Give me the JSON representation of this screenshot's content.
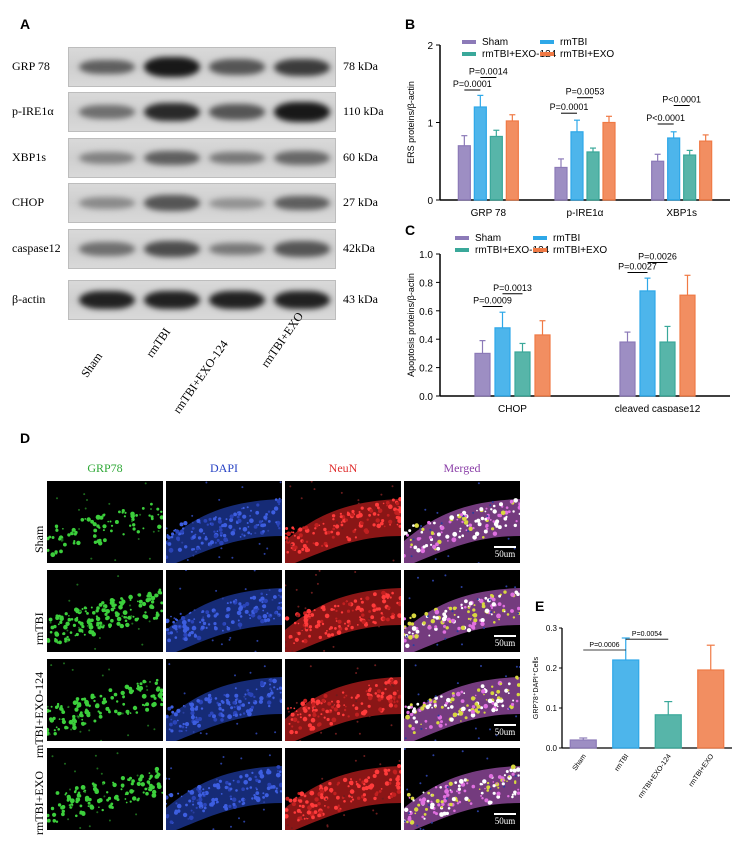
{
  "panel_letters": {
    "a": "A",
    "b": "B",
    "c": "C",
    "d": "D",
    "e": "E"
  },
  "western_blot": {
    "rows": [
      {
        "protein": "GRP 78",
        "kda": "78 kDa",
        "intensities": [
          0.55,
          0.95,
          0.6,
          0.75
        ]
      },
      {
        "protein": "p-IRE1α",
        "kda": "110 kDa",
        "intensities": [
          0.45,
          0.85,
          0.6,
          0.95
        ]
      },
      {
        "protein": "XBP1s",
        "kda": "60 kDa",
        "intensities": [
          0.35,
          0.55,
          0.4,
          0.5
        ]
      },
      {
        "protein": "CHOP",
        "kda": "27 kDa",
        "intensities": [
          0.3,
          0.6,
          0.25,
          0.55
        ]
      },
      {
        "protein": "caspase12",
        "kda": "42kDa",
        "intensities": [
          0.45,
          0.65,
          0.4,
          0.6
        ]
      },
      {
        "protein": "β-actin",
        "kda": "43 kDa",
        "intensities": [
          0.9,
          0.9,
          0.9,
          0.9
        ]
      }
    ],
    "lanes": [
      "Sham",
      "rmTBI",
      "rmTBI+EXO-124",
      "rmTBI+EXO"
    ]
  },
  "microscopy": {
    "channels": [
      "GRP78",
      "DAPI",
      "NeuN",
      "Merged"
    ],
    "channel_colors": [
      "#2ea836",
      "#2742c4",
      "#e03030",
      "#8b3fa8"
    ],
    "groups": [
      "Sham",
      "rmTBI",
      "rmTBI+EXO-124",
      "rmTBI+EXO"
    ],
    "scale_bar": "50um",
    "green_density": [
      0.25,
      0.75,
      0.6,
      0.5
    ]
  },
  "colors": {
    "sham": "#8c7ab8",
    "rmtbi": "#2ea8e8",
    "exo124": "#3aa89a",
    "exo": "#f07a45"
  },
  "chart_data": [
    {
      "panel": "B",
      "type": "bar",
      "ylabel": "ERS proteins/β-actin",
      "ylim": [
        0,
        2
      ],
      "yticks": [
        "0",
        "1",
        "2"
      ],
      "categories": [
        "GRP 78",
        "p-IRE1α",
        "XBP1s"
      ],
      "legend": [
        "Sham",
        "rmTBI",
        "rmTBI+EXO-124",
        "rmTBI+EXO"
      ],
      "series": [
        {
          "name": "Sham",
          "values": [
            0.7,
            0.42,
            0.5
          ],
          "errors": [
            0.13,
            0.11,
            0.09
          ]
        },
        {
          "name": "rmTBI",
          "values": [
            1.2,
            0.88,
            0.8
          ],
          "errors": [
            0.15,
            0.15,
            0.08
          ]
        },
        {
          "name": "rmTBI+EXO-124",
          "values": [
            0.82,
            0.62,
            0.58
          ],
          "errors": [
            0.08,
            0.05,
            0.06
          ]
        },
        {
          "name": "rmTBI+EXO",
          "values": [
            1.02,
            1.0,
            0.76
          ],
          "errors": [
            0.08,
            0.08,
            0.08
          ]
        }
      ],
      "annotations": [
        {
          "text": "P=0.0001",
          "cat": 0,
          "from": 0,
          "to": 1,
          "y": 1.42
        },
        {
          "text": "P=0.0014",
          "cat": 0,
          "from": 1,
          "to": 2,
          "y": 1.58
        },
        {
          "text": "P=0.0001",
          "cat": 1,
          "from": 0,
          "to": 1,
          "y": 1.12
        },
        {
          "text": "P=0.0053",
          "cat": 1,
          "from": 1,
          "to": 2,
          "y": 1.32
        },
        {
          "text": "P<0.0001",
          "cat": 2,
          "from": 0,
          "to": 1,
          "y": 0.98
        },
        {
          "text": "P<0.0001",
          "cat": 2,
          "from": 1,
          "to": 2,
          "y": 1.22
        }
      ]
    },
    {
      "panel": "C",
      "type": "bar",
      "ylabel": "Apoptosis proteins/β-actin",
      "ylim": [
        0,
        1.0
      ],
      "yticks": [
        "0.0",
        "0.2",
        "0.4",
        "0.6",
        "0.8",
        "1.0"
      ],
      "categories": [
        "CHOP",
        "cleaved caspase12"
      ],
      "legend": [
        "Sham",
        "rmTBI",
        "rmTBI+EXO-124",
        "rmTBI+EXO"
      ],
      "series": [
        {
          "name": "Sham",
          "values": [
            0.3,
            0.38
          ],
          "errors": [
            0.09,
            0.07
          ]
        },
        {
          "name": "rmTBI",
          "values": [
            0.48,
            0.74
          ],
          "errors": [
            0.11,
            0.09
          ]
        },
        {
          "name": "rmTBI+EXO-124",
          "values": [
            0.31,
            0.38
          ],
          "errors": [
            0.06,
            0.11
          ]
        },
        {
          "name": "rmTBI+EXO",
          "values": [
            0.43,
            0.71
          ],
          "errors": [
            0.1,
            0.14
          ]
        }
      ],
      "annotations": [
        {
          "text": "P=0.0009",
          "cat": 0,
          "from": 0,
          "to": 1,
          "y": 0.63
        },
        {
          "text": "P=0.0013",
          "cat": 0,
          "from": 1,
          "to": 2,
          "y": 0.72
        },
        {
          "text": "P=0.0027",
          "cat": 1,
          "from": 0,
          "to": 1,
          "y": 0.87
        },
        {
          "text": "P=0.0026",
          "cat": 1,
          "from": 1,
          "to": 2,
          "y": 0.94
        }
      ]
    },
    {
      "panel": "E",
      "type": "bar",
      "ylabel": "GRP78⁺DAPI⁺Cells",
      "ylim": [
        0,
        0.3
      ],
      "yticks": [
        "0.0",
        "0.1",
        "0.2",
        "0.3"
      ],
      "categories": [
        "Sham",
        "rmTBI",
        "rmTBI+EXO-124",
        "rmTBI+EXO"
      ],
      "values": [
        0.02,
        0.22,
        0.083,
        0.195
      ],
      "errors": [
        0.005,
        0.055,
        0.033,
        0.062
      ],
      "annotations": [
        {
          "text": "P=0.0006",
          "from": 0,
          "to": 1,
          "y": 0.245
        },
        {
          "text": "P=0.0054",
          "from": 1,
          "to": 2,
          "y": 0.272
        }
      ]
    }
  ]
}
